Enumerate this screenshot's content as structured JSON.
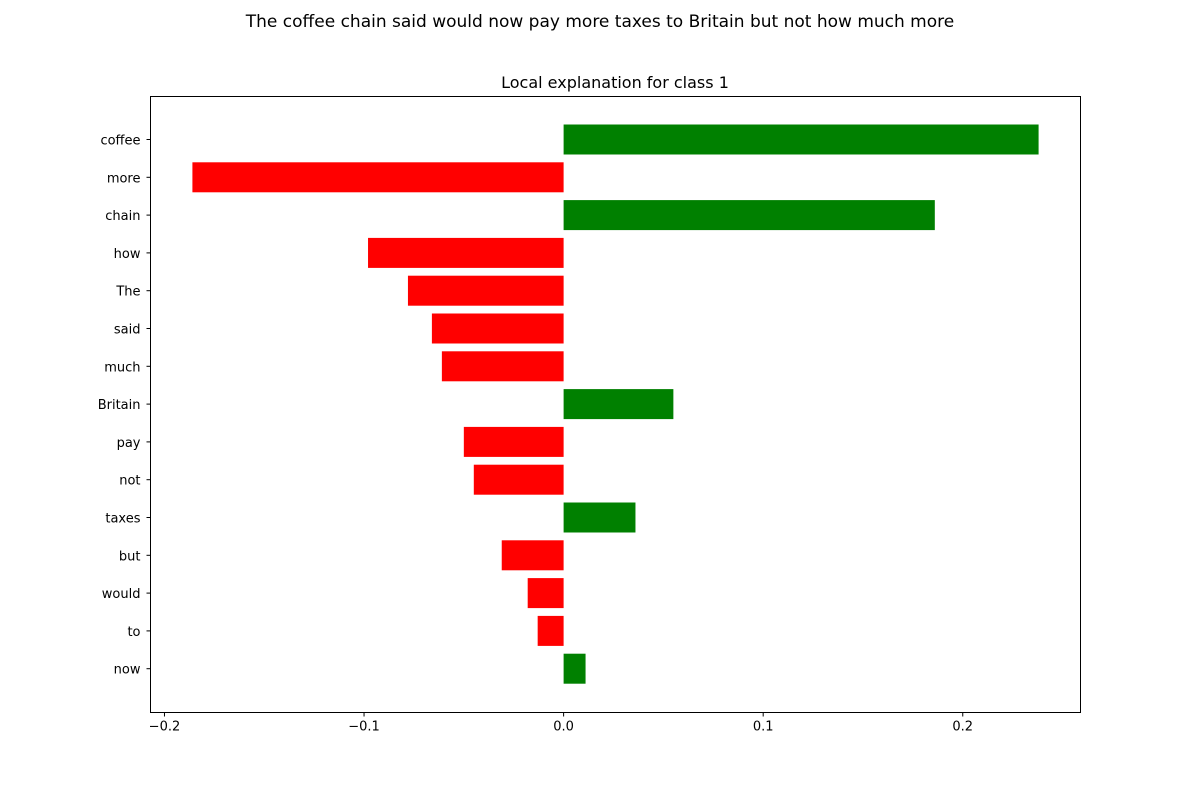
{
  "figure": {
    "suptitle": "The coffee chain said would now pay more taxes to Britain but not how much more"
  },
  "colors": {
    "positive": "#008000",
    "negative": "#ff0000",
    "axis": "#000000"
  },
  "chart_data": {
    "type": "bar",
    "orientation": "horizontal",
    "title": "Local explanation for class 1",
    "xlabel": "",
    "ylabel": "",
    "categories": [
      "coffee",
      "more",
      "chain",
      "how",
      "The",
      "said",
      "much",
      "Britain",
      "pay",
      "not",
      "taxes",
      "but",
      "would",
      "to",
      "now"
    ],
    "values": [
      0.238,
      -0.186,
      0.186,
      -0.098,
      -0.078,
      -0.066,
      -0.061,
      0.055,
      -0.05,
      -0.045,
      0.036,
      -0.031,
      -0.018,
      -0.013,
      0.011
    ],
    "xlim": [
      -0.207,
      0.259
    ],
    "xticks": [
      -0.2,
      -0.1,
      0.0,
      0.1,
      0.2
    ],
    "xtick_labels": [
      "−0.2",
      "−0.1",
      "0.0",
      "0.1",
      "0.2"
    ],
    "grid": false,
    "legend": "none"
  }
}
